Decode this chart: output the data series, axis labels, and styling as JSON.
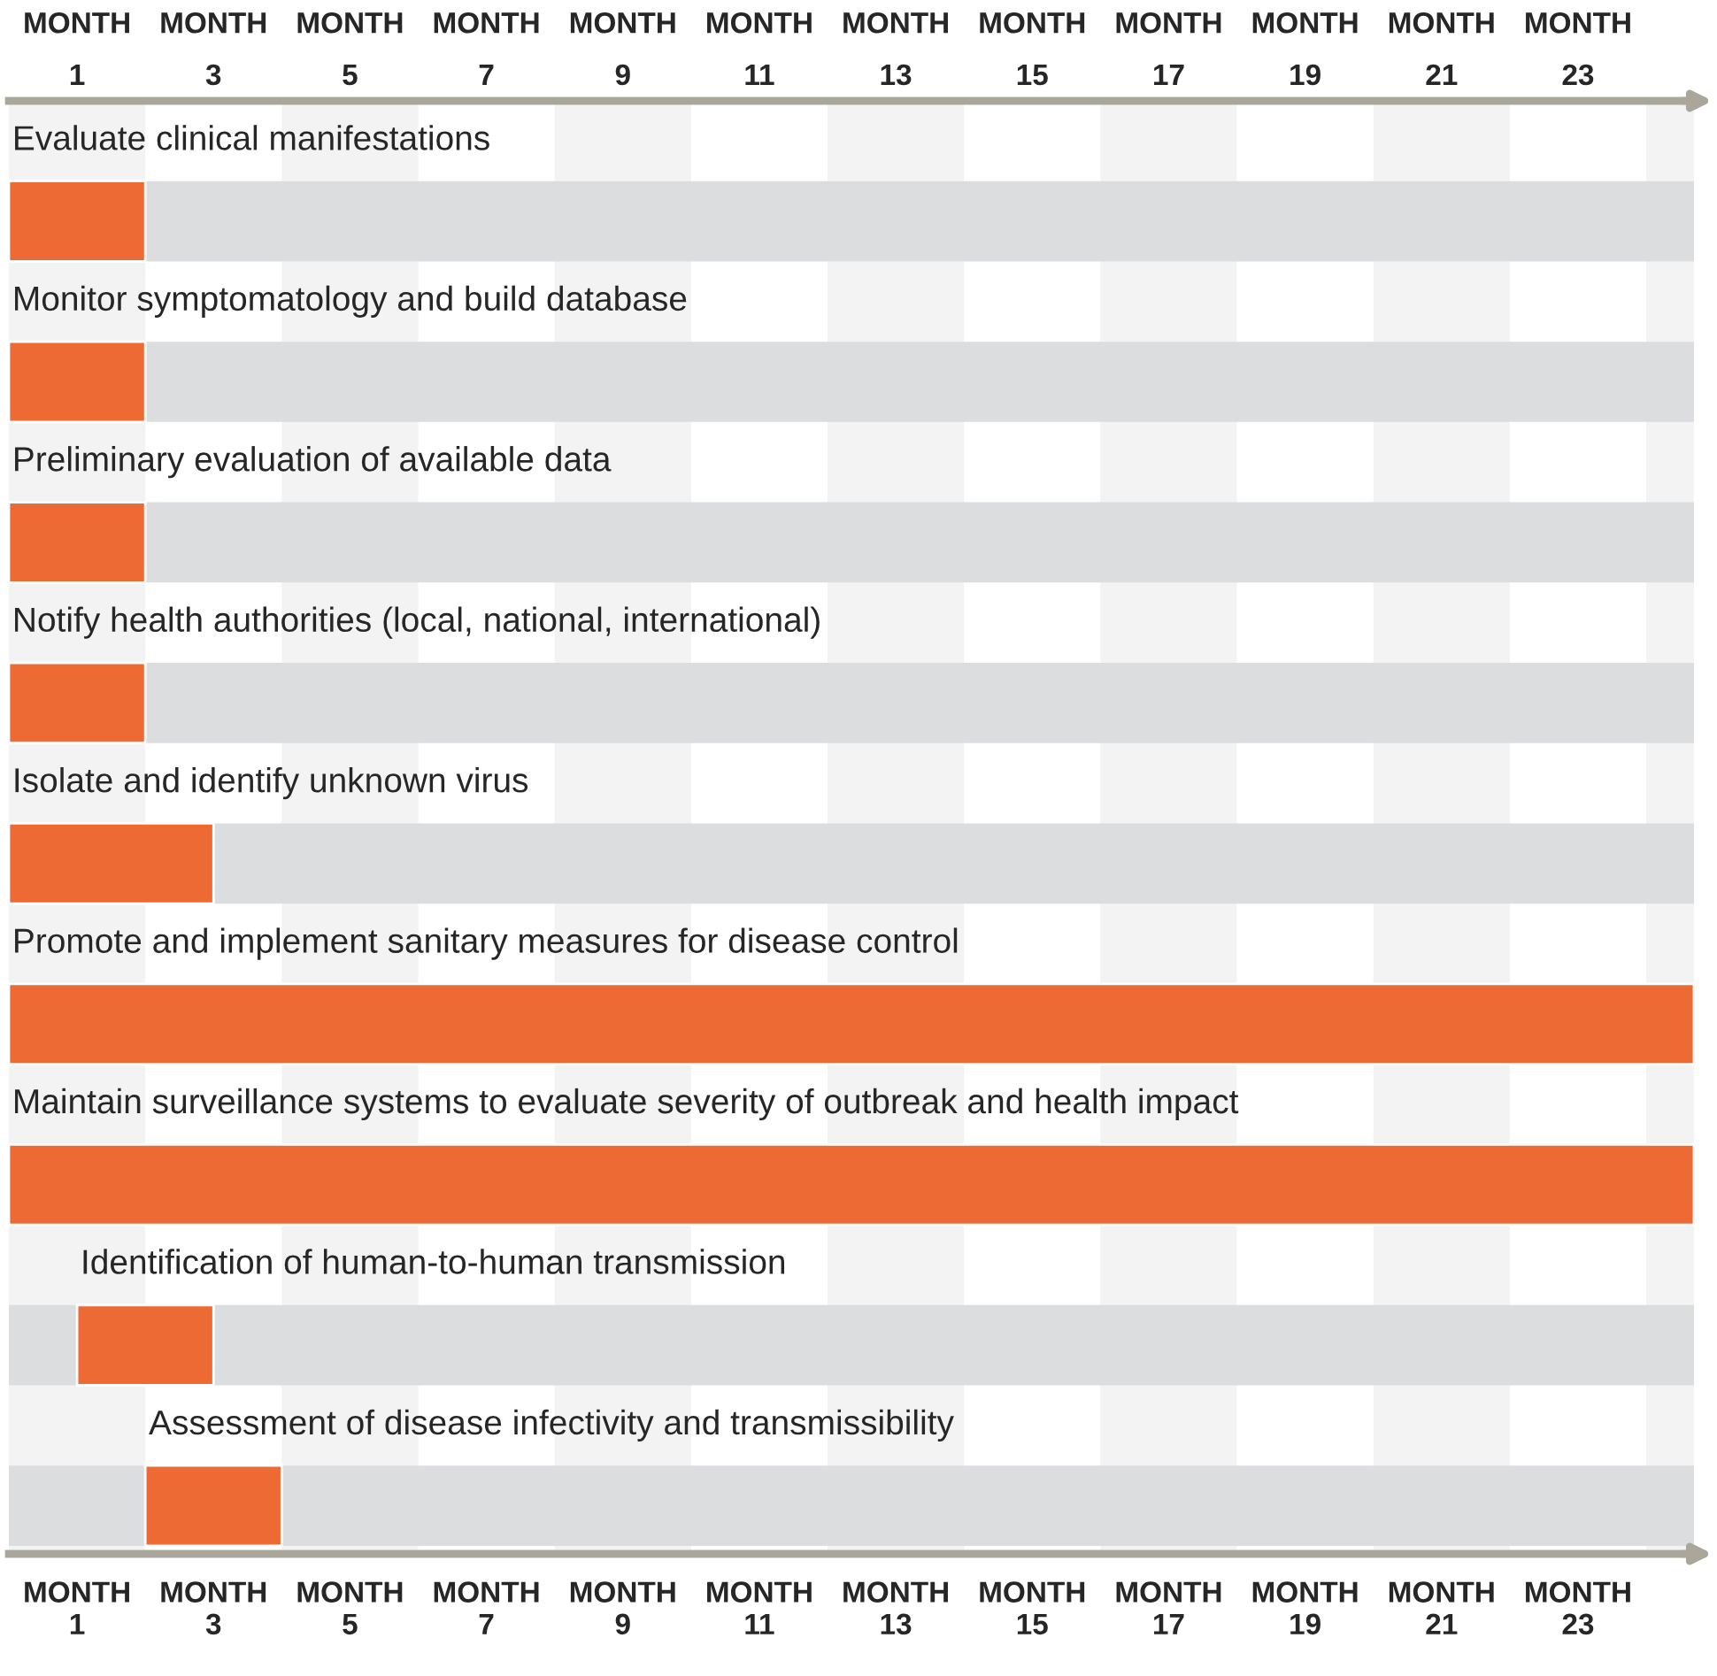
{
  "chart_data": {
    "type": "bar",
    "orientation": "horizontal",
    "categories": [
      "Evaluate clinical manifestations",
      "Monitor symptomatology and build database",
      "Preliminary evaluation of available data",
      "Notify health authorities (local, national, international)",
      "Isolate and identify unknown virus",
      "Promote and implement sanitary measures for disease control",
      "Maintain surveillance systems to evaluate severity of outbreak and health impact",
      "Identification of human-to-human transmission",
      "Assessment of disease infectivity and transmissibility"
    ],
    "base": [
      0,
      0,
      0,
      0,
      0,
      0,
      0,
      1,
      2
    ],
    "values": [
      2,
      2,
      2,
      2,
      3,
      24.7,
      24.7,
      2,
      2
    ],
    "color": "#ee6a35",
    "xlim": [
      0,
      24.7
    ],
    "xticks": [
      1,
      3,
      5,
      7,
      9,
      11,
      13,
      15,
      17,
      19,
      21,
      23
    ],
    "x2lim": [
      0,
      24.7
    ],
    "x2ticks": [
      1,
      3,
      5,
      7,
      9,
      11,
      13,
      15,
      17,
      19,
      21,
      23
    ],
    "annotations": [
      "MONTH",
      "MONTH",
      "MONTH",
      "MONTH",
      "MONTH",
      "MONTH",
      "MONTH",
      "MONTH",
      "MONTH",
      "MONTH",
      "MONTH",
      "MONTH",
      "MONTH",
      "MONTH",
      "MONTH",
      "MONTH",
      "MONTH",
      "MONTH",
      "MONTH",
      "MONTH",
      "MONTH",
      "MONTH",
      "MONTH",
      "MONTH"
    ],
    "tick_labels": "x",
    "grid": false,
    "legend": false
  }
}
